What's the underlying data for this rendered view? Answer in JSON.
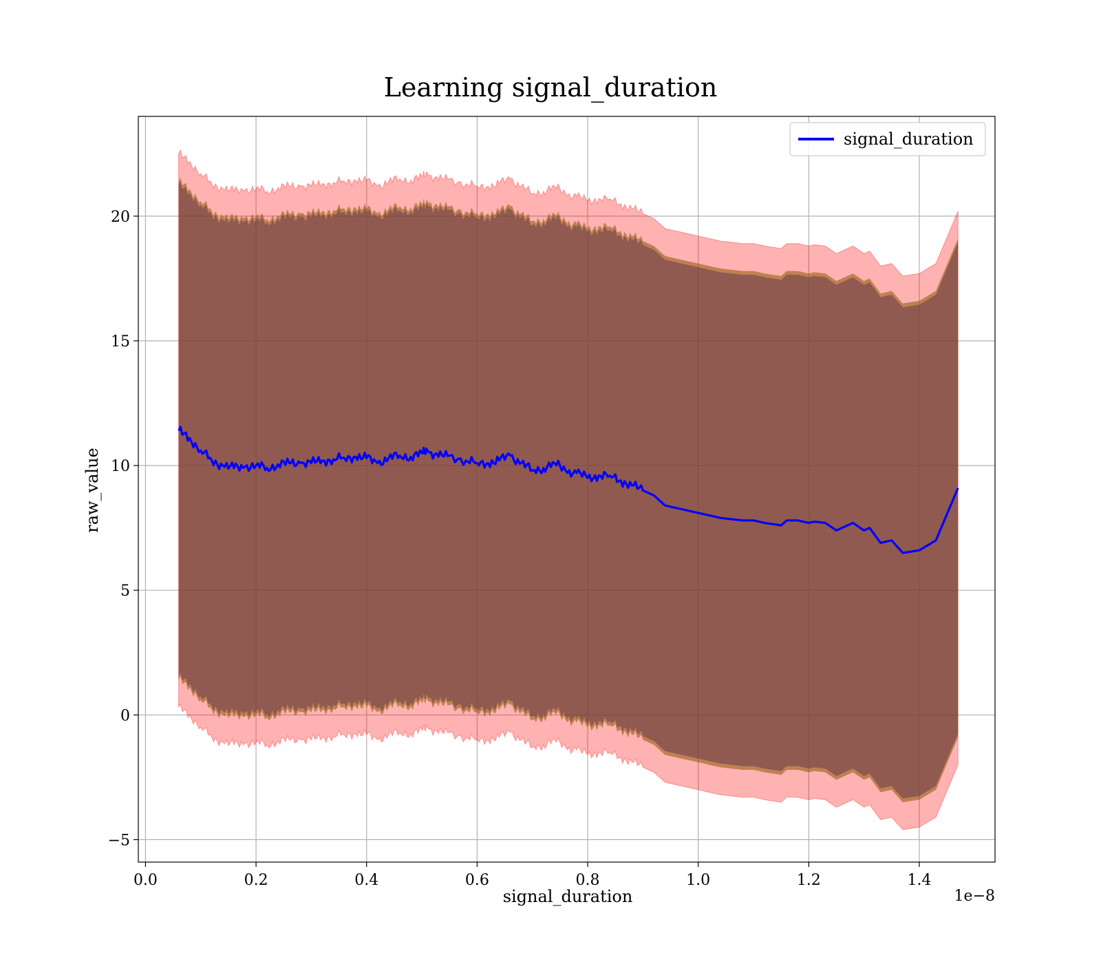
{
  "chart_data": {
    "type": "line",
    "title": "Learning signal_duration",
    "xlabel": "signal_duration",
    "ylabel": "raw_value",
    "x_offset_label": "1e−8",
    "xlim": [
      -0.013,
      1.537
    ],
    "ylim": [
      -5.9,
      24.0
    ],
    "x_ticks": [
      0.0,
      0.2,
      0.4,
      0.6,
      0.8,
      1.0,
      1.2,
      1.4
    ],
    "x_tick_labels": [
      "0.0",
      "0.2",
      "0.4",
      "0.6",
      "0.8",
      "1.0",
      "1.2",
      "1.4"
    ],
    "y_ticks": [
      -5,
      0,
      5,
      10,
      15,
      20
    ],
    "y_tick_labels": [
      "−5",
      "0",
      "5",
      "10",
      "15",
      "20"
    ],
    "grid": true,
    "legend": {
      "position": "top-right",
      "entries": [
        "signal_duration"
      ]
    },
    "colors": {
      "line": "#0000ff",
      "outer_band": "#ff0000",
      "inner_band": "#8b0000",
      "mid_band": "#8b5a00"
    },
    "series": [
      {
        "name": "signal_duration",
        "x": [
          0.06,
          0.08,
          0.1,
          0.12,
          0.14,
          0.16,
          0.18,
          0.2,
          0.22,
          0.24,
          0.26,
          0.28,
          0.3,
          0.32,
          0.34,
          0.36,
          0.38,
          0.4,
          0.42,
          0.44,
          0.46,
          0.48,
          0.5,
          0.51,
          0.53,
          0.55,
          0.58,
          0.6,
          0.62,
          0.64,
          0.66,
          0.68,
          0.7,
          0.72,
          0.74,
          0.76,
          0.78,
          0.8,
          0.82,
          0.84,
          0.86,
          0.88,
          0.9,
          0.92,
          0.94,
          0.96,
          0.98,
          1.0,
          1.02,
          1.04,
          1.06,
          1.08,
          1.1,
          1.12,
          1.15,
          1.16,
          1.18,
          1.2,
          1.21,
          1.23,
          1.25,
          1.28,
          1.3,
          1.31,
          1.33,
          1.35,
          1.37,
          1.4,
          1.43,
          1.47
        ],
        "values": [
          11.4,
          11.1,
          10.6,
          10.2,
          10.0,
          9.9,
          9.95,
          10.0,
          9.9,
          10.05,
          10.1,
          10.1,
          10.1,
          10.2,
          10.25,
          10.3,
          10.35,
          10.3,
          10.1,
          10.3,
          10.4,
          10.35,
          10.5,
          10.6,
          10.35,
          10.4,
          10.2,
          10.1,
          10.1,
          10.2,
          10.4,
          10.1,
          9.8,
          9.9,
          10.1,
          9.8,
          9.7,
          9.5,
          9.6,
          9.6,
          9.4,
          9.2,
          9.0,
          8.8,
          8.4,
          8.3,
          8.2,
          8.1,
          8.0,
          7.9,
          7.85,
          7.8,
          7.8,
          7.7,
          7.6,
          7.8,
          7.8,
          7.7,
          7.75,
          7.7,
          7.4,
          7.7,
          7.4,
          7.5,
          6.9,
          7.0,
          6.5,
          6.6,
          7.0,
          9.1
        ],
        "outer_upper_offset": 11.1,
        "inner_upper_offset": 10.0,
        "mid_upper_offset": 9.7,
        "outer_lower_offset": 11.1,
        "inner_lower_offset": 10.0,
        "mid_lower_offset": 9.7
      }
    ]
  }
}
